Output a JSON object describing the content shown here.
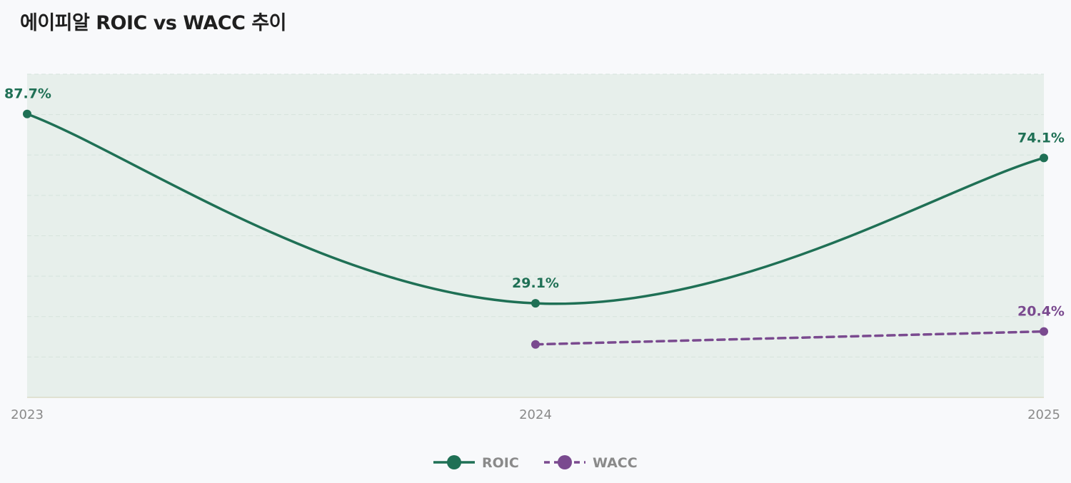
{
  "chart_data": {
    "type": "line",
    "title": "에이피알  ROIC vs WACC 추이",
    "x": [
      "2023",
      "2024",
      "2025"
    ],
    "ylim": [
      0,
      100
    ],
    "grid": true,
    "legend_position": "bottom-center",
    "series": [
      {
        "name": "ROIC",
        "color": "#1f7055",
        "style": "solid",
        "values": [
          87.7,
          29.1,
          74.1
        ],
        "labels": [
          "87.7%",
          "29.1%",
          "74.1%"
        ]
      },
      {
        "name": "WACC",
        "color": "#7a4a8f",
        "style": "dashed",
        "values": [
          null,
          16.4,
          20.4
        ],
        "labels": [
          null,
          null,
          "20.4%"
        ]
      }
    ]
  }
}
